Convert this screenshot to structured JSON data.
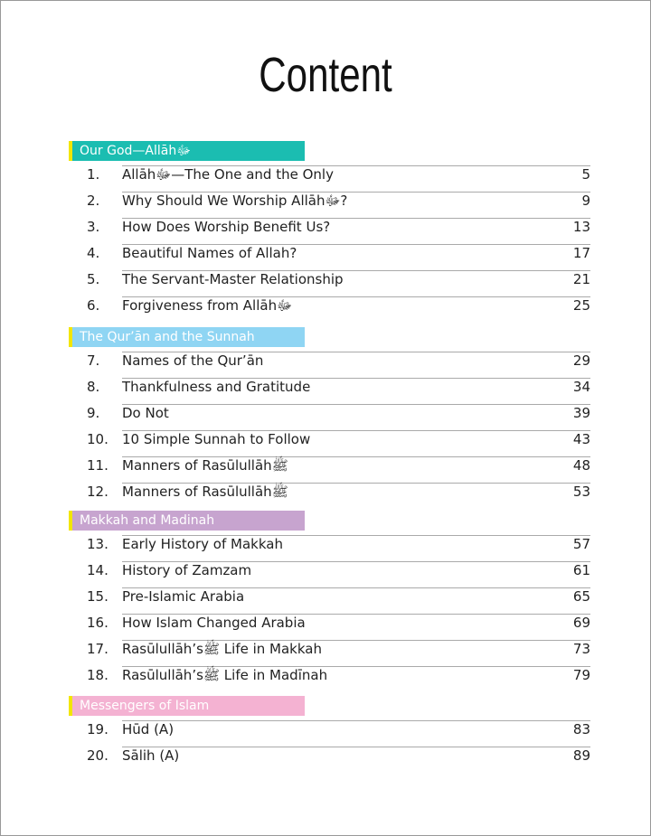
{
  "header": {
    "title": "Content"
  },
  "sections": [
    {
      "heading": "Our God—Allāhﷻ",
      "entries": [
        {
          "number": "1.",
          "title": "Allāhﷻ—The One and the Only",
          "page": 5
        },
        {
          "number": "2.",
          "title": "Why Should We Worship Allāhﷻ?",
          "page": 9
        },
        {
          "number": "3.",
          "title": "How Does Worship Benefit Us?",
          "page": 13
        },
        {
          "number": "4.",
          "title": "Beautiful Names of Allah?",
          "page": 17
        },
        {
          "number": "5.",
          "title": "The Servant-Master Relationship",
          "page": 21
        },
        {
          "number": "6.",
          "title": "Forgiveness from Allāhﷻ",
          "page": 25
        }
      ]
    },
    {
      "heading": "The Qur’ān and the Sunnah",
      "entries": [
        {
          "number": "7.",
          "title": "Names of the Qur’ān",
          "page": 29
        },
        {
          "number": "8.",
          "title": "Thankfulness and Gratitude",
          "page": 34
        },
        {
          "number": "9.",
          "title": "Do Not",
          "page": 39
        },
        {
          "number": "10.",
          "title": "10 Simple Sunnah to Follow",
          "page": 43
        },
        {
          "number": "11.",
          "title": "Manners of Rasūlullāhﷺ",
          "page": 48
        },
        {
          "number": "12.",
          "title": "Manners of Rasūlullāhﷺ",
          "page": 53
        }
      ]
    },
    {
      "heading": "Makkah and Madinah",
      "entries": [
        {
          "number": "13.",
          "title": "Early History of Makkah",
          "page": 57
        },
        {
          "number": "14.",
          "title": "History of Zamzam",
          "page": 61
        },
        {
          "number": "15.",
          "title": "Pre-Islamic Arabia",
          "page": 65
        },
        {
          "number": "16.",
          "title": "How Islam Changed Arabia",
          "page": 69
        },
        {
          "number": "17.",
          "title": "Rasūlullāh’sﷺ Life in Makkah",
          "page": 73
        },
        {
          "number": "18.",
          "title": "Rasūlullāh’sﷺ Life in Madīnah",
          "page": 79
        }
      ]
    },
    {
      "heading": "Messengers of Islam",
      "entries": [
        {
          "number": "19.",
          "title": "Hūd (A)",
          "page": 83
        },
        {
          "number": "20.",
          "title": "Sālih (A)",
          "page": 89
        }
      ]
    }
  ]
}
